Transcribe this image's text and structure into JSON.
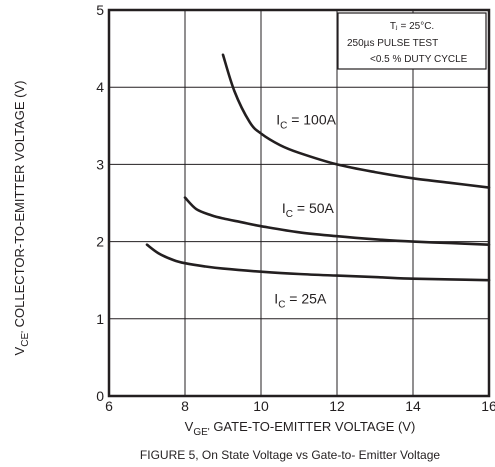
{
  "chart_data": {
    "type": "line",
    "title": "",
    "caption": "FIGURE 5, On  State Voltage vs Gate-to- Emitter Voltage",
    "xlabel": {
      "main": "V",
      "sub": "GE'",
      "rest": " GATE-TO-EMITTER VOLTAGE (V)"
    },
    "ylabel": {
      "main": "V",
      "sub": "CE'",
      "rest": " COLLECTOR-TO-EMITTER VOLTAGE (V)"
    },
    "xlim": [
      6,
      16
    ],
    "ylim": [
      0,
      5
    ],
    "xticks": [
      6,
      8,
      10,
      12,
      14,
      16
    ],
    "yticks": [
      0,
      1,
      2,
      3,
      4,
      5
    ],
    "grid": true,
    "conditions": {
      "temp": "Tⱼ = 25°C.",
      "pulse": "250µs PULSE TEST",
      "duty": "<0.5 % DUTY CYCLE"
    },
    "series": [
      {
        "name": "I_C = 100A",
        "label_main": "I",
        "label_sub": "C",
        "label_rest": " = 100A",
        "label_at": [
          10.4,
          3.52
        ],
        "x": [
          9.0,
          9.3,
          9.7,
          10.0,
          10.5,
          11.0,
          12.0,
          13.0,
          14.0,
          15.0,
          16.0
        ],
        "y": [
          4.42,
          3.95,
          3.55,
          3.4,
          3.25,
          3.15,
          3.0,
          2.9,
          2.82,
          2.76,
          2.7
        ]
      },
      {
        "name": "I_C = 50A",
        "label_main": "I",
        "label_sub": "C",
        "label_rest": " = 50A",
        "label_at": [
          10.55,
          2.37
        ],
        "x": [
          8.0,
          8.3,
          8.7,
          9.0,
          9.5,
          10.0,
          11.0,
          12.0,
          13.0,
          14.0,
          15.0,
          16.0
        ],
        "y": [
          2.57,
          2.42,
          2.34,
          2.3,
          2.25,
          2.2,
          2.12,
          2.07,
          2.03,
          2.0,
          1.98,
          1.96
        ]
      },
      {
        "name": "I_C = 25A",
        "label_main": "I",
        "label_sub": "C",
        "label_rest": " = 25A",
        "label_at": [
          10.35,
          1.2
        ],
        "x": [
          7.0,
          7.3,
          7.7,
          8.0,
          8.5,
          9.0,
          10.0,
          11.0,
          12.0,
          13.0,
          14.0,
          15.0,
          16.0
        ],
        "y": [
          1.96,
          1.85,
          1.76,
          1.72,
          1.68,
          1.65,
          1.61,
          1.58,
          1.56,
          1.54,
          1.52,
          1.51,
          1.5
        ]
      }
    ],
    "colors": {
      "line": "#231f20",
      "grid": "#231f20",
      "background": "#ffffff"
    }
  }
}
